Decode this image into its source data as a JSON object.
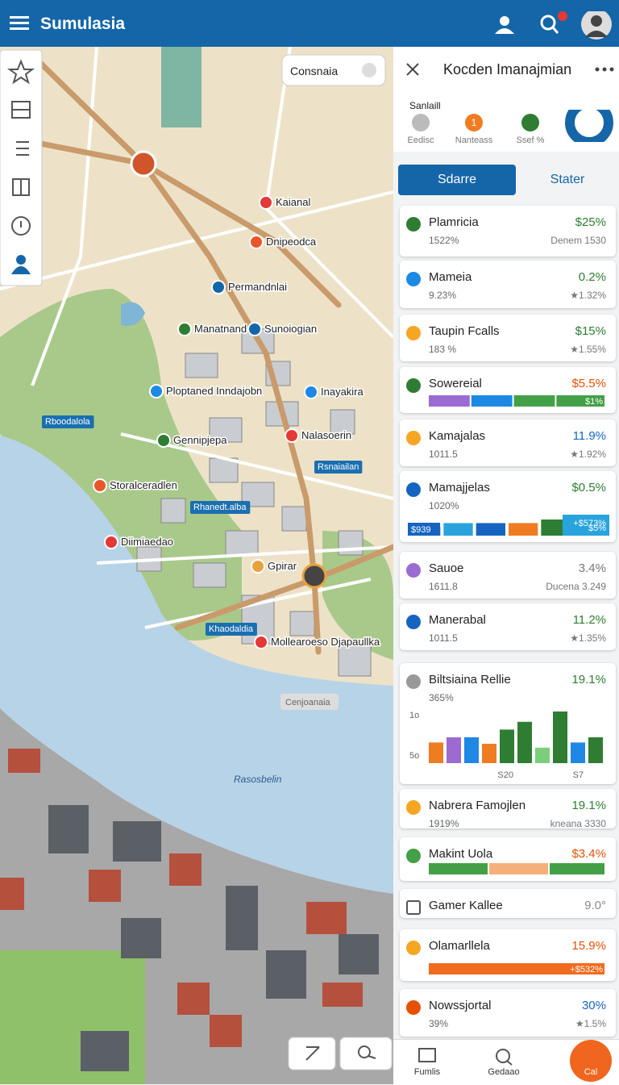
{
  "app_bar": {
    "title": "Sumulasia"
  },
  "map": {
    "search": "Consnaia",
    "labels": [
      "Kaianal",
      "Dnipeodca",
      "Permandnlai",
      "Manatnand",
      "Sunoiogian",
      "Ploptaned Inndajobn",
      "Inayakira",
      "Nalasoerin",
      "Gennipjepa",
      "Storalceradlen",
      "Diimiaedao",
      "Gpirar",
      "Mollearoeso Djapaullka"
    ],
    "badges": [
      "Rboodalola",
      "Rsnaiailan",
      "Rhanedt.alba",
      "Khaodaldia"
    ],
    "bottom_label": "Cenjoanaia",
    "water_label": "Rasosbelin"
  },
  "panel": {
    "title": "Kocden Imanajmian",
    "section_label": "Sanlaill",
    "stat_badge": "1",
    "stats": [
      "Eedisc",
      "Nanteass",
      "Ssef %"
    ],
    "tabs": [
      "Sdarre",
      "Stater"
    ],
    "cards": [
      {
        "name": "Plamricia",
        "value": "$25%",
        "color": "#2e7d32",
        "icon": "#2e7d32",
        "sub": "1522%",
        "note": "Denem 1530"
      },
      {
        "name": "Mameia",
        "value": "0.2%",
        "color": "#2e7d32",
        "icon": "#1e88e5",
        "sub": "9.23%",
        "note": "★1.32%"
      },
      {
        "name": "Taupin Fcalls",
        "value": "$15%",
        "color": "#2e7d32",
        "icon": "#f5a623",
        "sub": "183 %",
        "note": "★1.55%"
      },
      {
        "name": "Sowereial",
        "value": "$5.5%",
        "color": "#e65100",
        "icon": "#2e7d32",
        "segments": [
          {
            "color": "#9c6bd1",
            "value": 24
          },
          {
            "color": "#1e88e5",
            "value": 24
          },
          {
            "color": "#43a047",
            "value": 24
          },
          {
            "color": "#43a047",
            "value": 28
          }
        ],
        "bar_label": "$1%"
      },
      {
        "name": "Kamajalas",
        "value": "11.9%",
        "color": "#1565c0",
        "icon": "#f5a623",
        "sub": "1011.5",
        "note": "★1.92%"
      },
      {
        "name": "Mamajjelas",
        "value": "$0.5%",
        "color": "#2e7d32",
        "icon": "#1565c0",
        "sub": "1020%",
        "chart": {
          "values": [
            10,
            14,
            14,
            14,
            18,
            18
          ],
          "colors": [
            "#1565c0",
            "#29a3dc",
            "#1565c0",
            "#f07c22",
            "#2e7d32",
            "#29a3dc"
          ],
          "labels": [
            "$939",
            "+$573%",
            "$5%"
          ]
        }
      },
      {
        "name": "Sauoe",
        "value": "3.4%",
        "color": "#777777",
        "icon": "#9c6bd1",
        "sub": "1611.8",
        "note": "Ducena 3.249"
      },
      {
        "name": "Manerabal",
        "value": "11.2%",
        "color": "#2e7d32",
        "icon": "#1565c0",
        "sub": "1011.5",
        "note": "★1.35%"
      },
      {
        "name": "Biltsiaina Rellie",
        "value": "19.1%",
        "color": "#2e7d32",
        "icon": "#999999",
        "sub": "365%",
        "chart": {
          "values": [
            16,
            20,
            20,
            15,
            26,
            32,
            12,
            40,
            16,
            20
          ],
          "colors": [
            "#f07c22",
            "#9c6bd1",
            "#1e88e5",
            "#f07c22",
            "#2e7d32",
            "#2e7d32",
            "#7bcf7b",
            "#2e7d32",
            "#1e88e5",
            "#2e7d32"
          ],
          "labels": [
            "1o",
            "5o",
            "S20",
            "S7"
          ]
        }
      },
      {
        "name": "Nabrera Famojlen",
        "value": "19.1%",
        "color": "#2e7d32",
        "icon": "#f5a623",
        "sub": "1919%",
        "note": "kneana 3330"
      },
      {
        "name": "Makint Uola",
        "value": "$3.4%",
        "color": "#e65100",
        "icon": "#43a047",
        "segments": [
          {
            "color": "#43a047",
            "value": 30
          },
          {
            "color": "#f5b07a",
            "value": 30
          },
          {
            "color": "#43a047",
            "value": 28
          }
        ]
      },
      {
        "name": "Gamer Kallee",
        "value": "9.0°",
        "color": "#888888",
        "icon": "#ffffff"
      },
      {
        "name": "Olamarllela",
        "value": "15.9%",
        "color": "#e65100",
        "icon": "#f5a623",
        "segments": [
          {
            "color": "#f06b1e",
            "value": 100
          }
        ],
        "bar_label": "+$532%"
      },
      {
        "name": "Nowssjortal",
        "value": "30%",
        "color": "#1565c0",
        "icon": "#e65100",
        "sub": "39%",
        "note": "★1.5%"
      }
    ]
  },
  "bottom_nav": {
    "items": [
      "Fumlis",
      "Gedaao",
      "Cal"
    ]
  }
}
